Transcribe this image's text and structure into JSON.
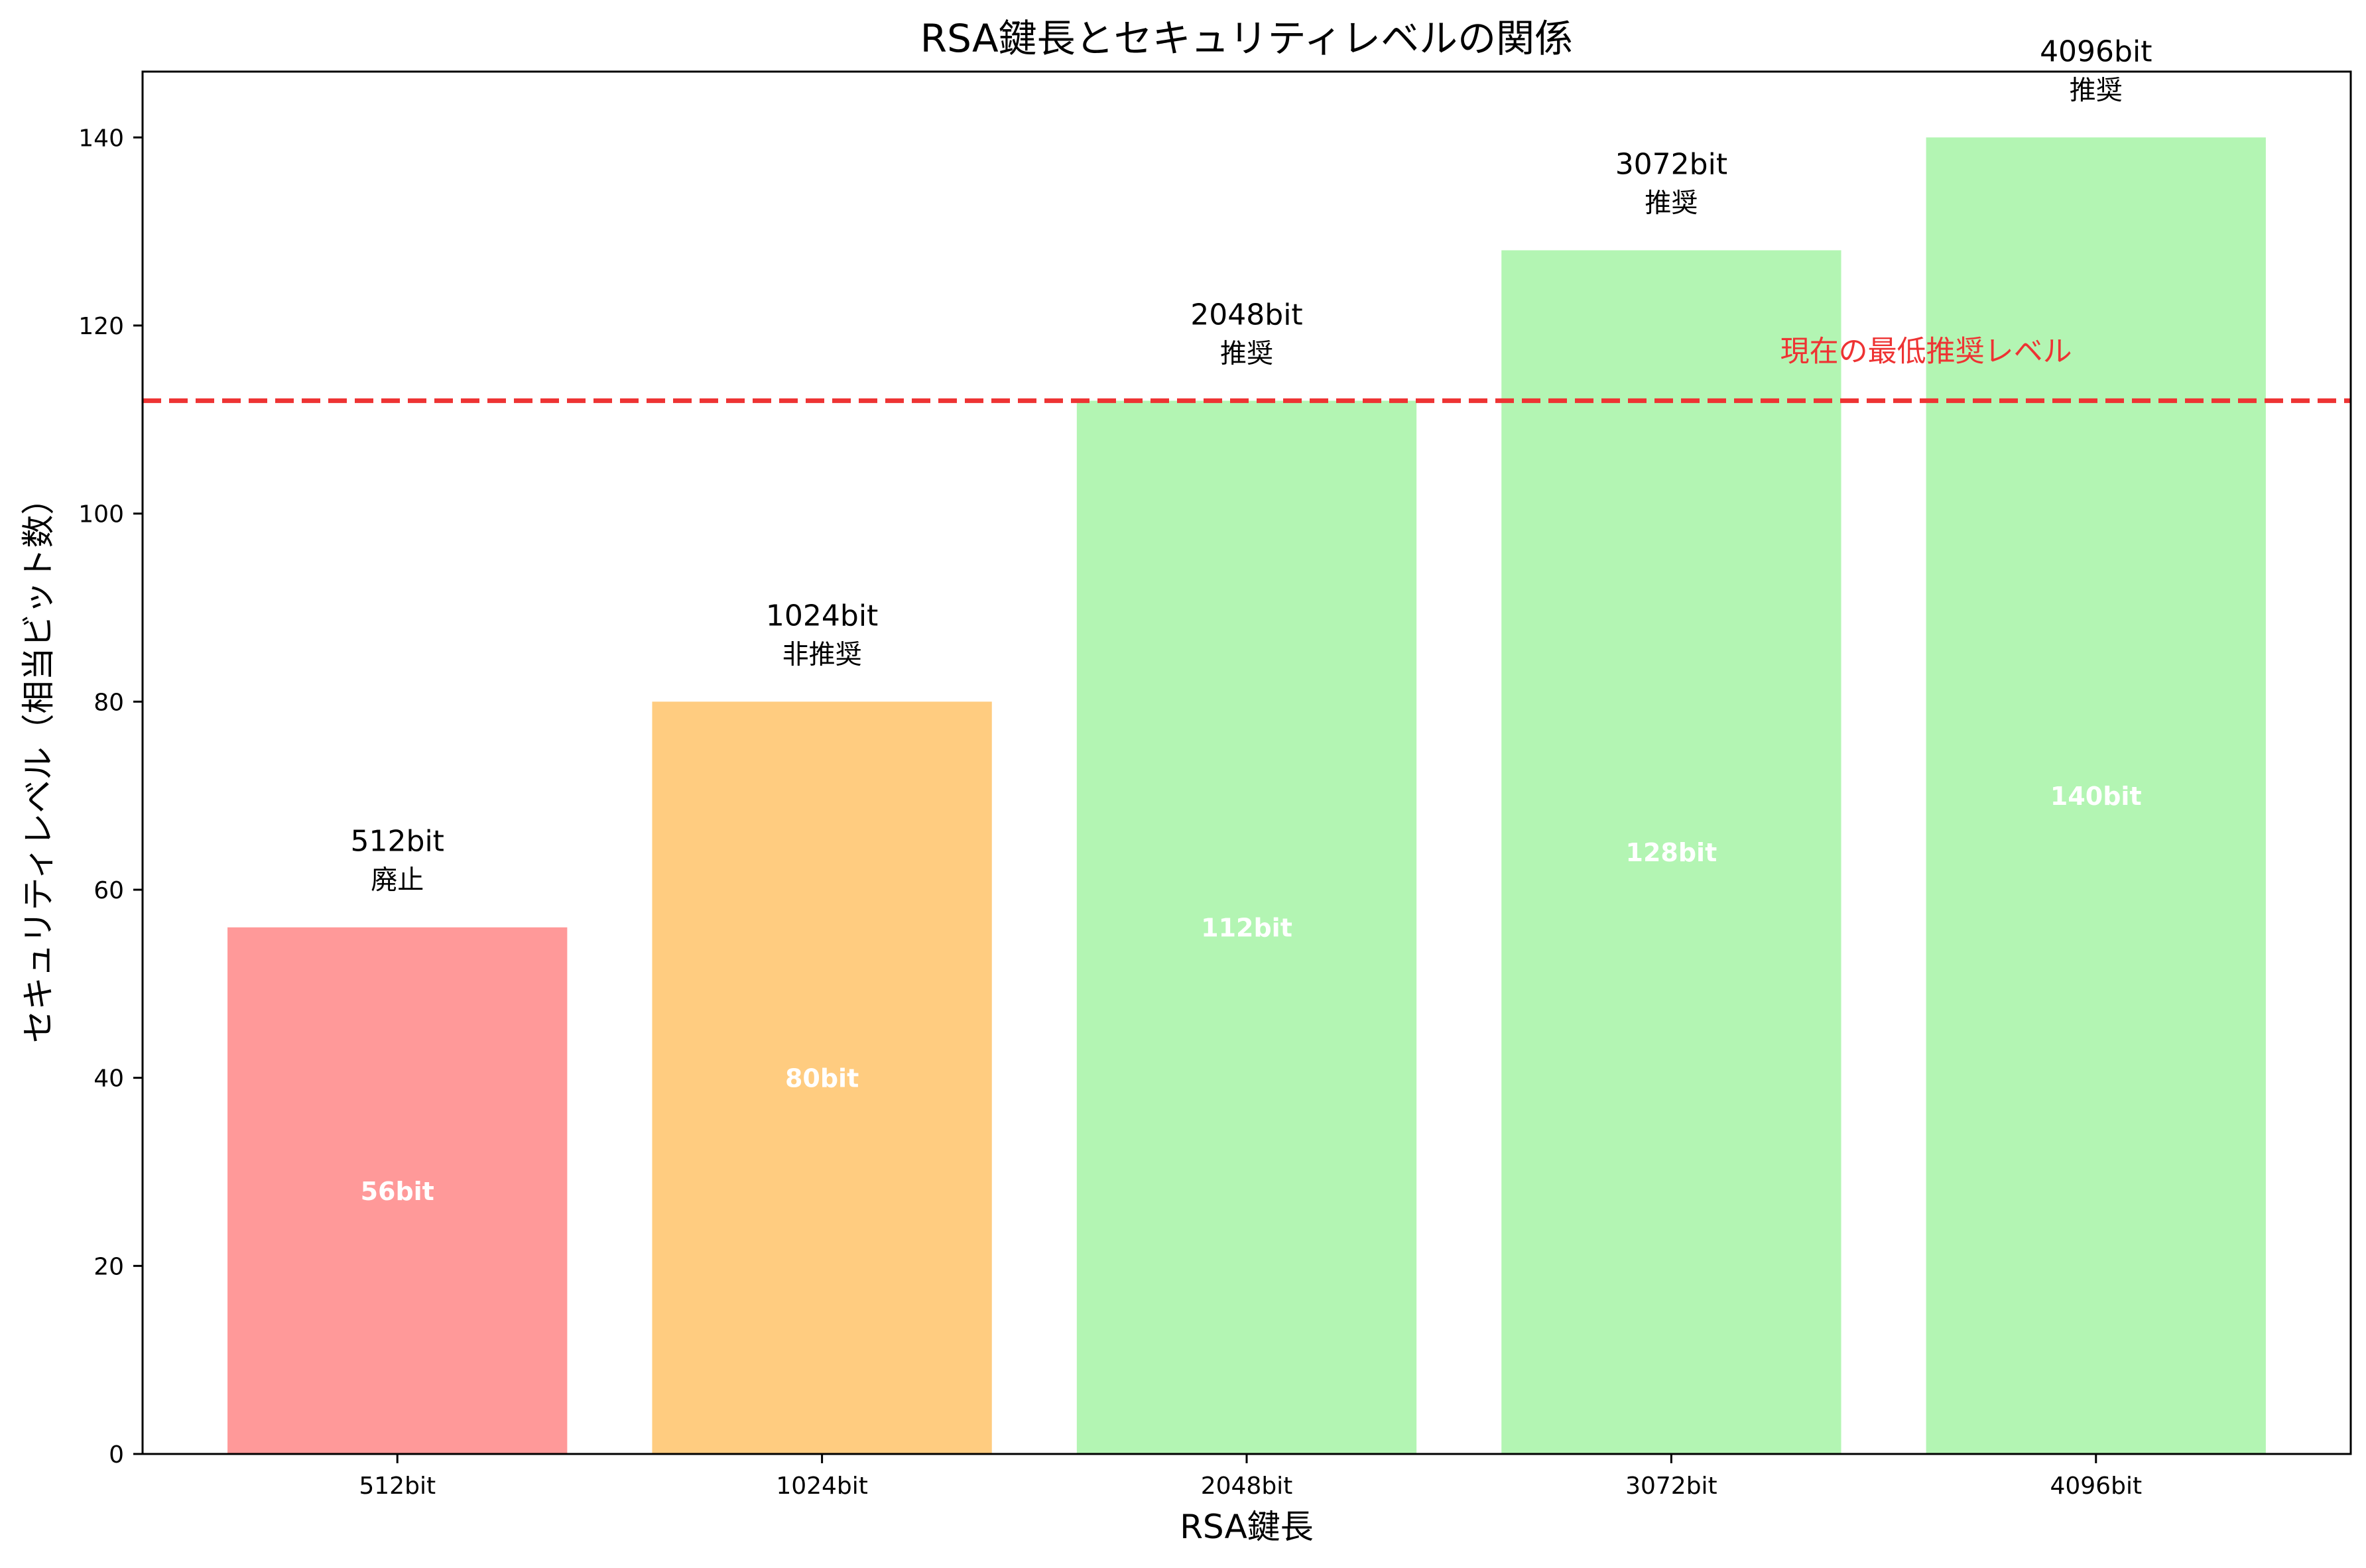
{
  "chart_data": {
    "type": "bar",
    "title": "RSA鍵長とセキュリティレベルの関係",
    "xlabel": "RSA鍵長",
    "ylabel": "セキュリティレベル（相当ビット数）",
    "categories": [
      "512bit",
      "1024bit",
      "2048bit",
      "3072bit",
      "4096bit"
    ],
    "values": [
      56,
      80,
      112,
      128,
      140
    ],
    "bar_top_labels": [
      "512bit",
      "1024bit",
      "2048bit",
      "3072bit",
      "4096bit"
    ],
    "status_labels": [
      "廃止",
      "非推奨",
      "推奨",
      "推奨",
      "推奨"
    ],
    "inner_labels": [
      "56bit",
      "80bit",
      "112bit",
      "128bit",
      "140bit"
    ],
    "bar_colors": [
      "#ff9999",
      "#ffcc80",
      "#b3f5b3",
      "#b3f5b3",
      "#b3f5b3"
    ],
    "ylim": [
      0,
      147
    ],
    "yticks": [
      0,
      20,
      40,
      60,
      80,
      100,
      120,
      140
    ],
    "grid": false,
    "reference_line": {
      "value": 112,
      "label": "現在の最低推奨レベル",
      "color": "#ee3333",
      "style": "dashed"
    }
  }
}
